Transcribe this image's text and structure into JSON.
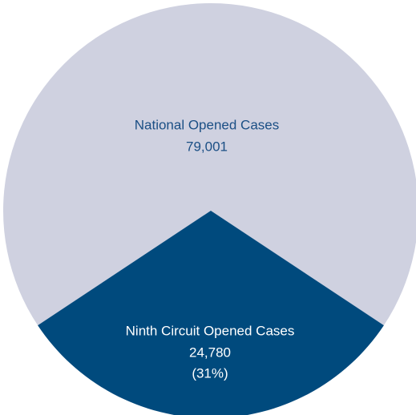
{
  "chart_data": {
    "type": "pie",
    "slices": [
      {
        "label": "National Opened Cases",
        "value": 79001,
        "value_label": "79,001",
        "color": "#cfd1e0"
      },
      {
        "label": "Ninth Circuit Opened Cases",
        "value": 24780,
        "value_label": "24,780",
        "share": 31,
        "share_label": "(31%)",
        "color": "#004a7d"
      }
    ]
  }
}
